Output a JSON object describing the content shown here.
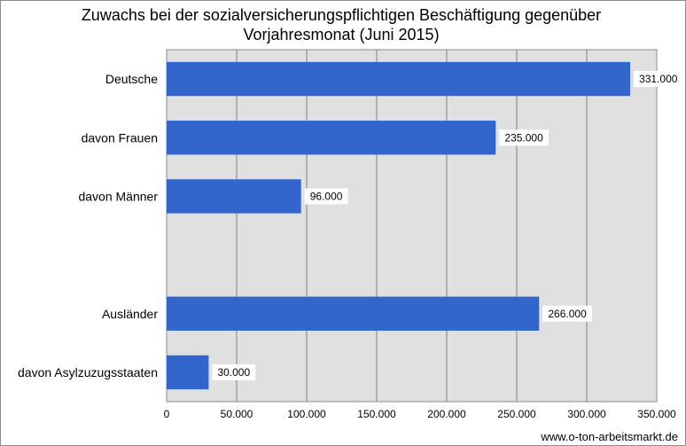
{
  "chart_data": {
    "type": "bar",
    "orientation": "horizontal",
    "title_lines": [
      "Zuwachs bei der sozialversicherungspflichtigen Beschäftigung gegenüber",
      "Vorjahresmonat (Juni 2015)"
    ],
    "categories": [
      "Deutsche",
      "davon Frauen",
      "davon Männer",
      "",
      "Ausländer",
      "davon Asylzuzugsstaaten"
    ],
    "values": [
      331000,
      235000,
      96000,
      null,
      266000,
      30000
    ],
    "data_labels": [
      "331.000",
      "235.000",
      "96.000",
      "",
      "266.000",
      "30.000"
    ],
    "xlim": [
      0,
      350000
    ],
    "x_ticks": [
      0,
      50000,
      100000,
      150000,
      200000,
      250000,
      300000,
      350000
    ],
    "x_tick_labels": [
      "0",
      "50.000",
      "100.000",
      "150.000",
      "200.000",
      "250.000",
      "300.000",
      "350.000"
    ],
    "grid": true,
    "legend": "none",
    "bar_color": "#3366cc",
    "plot_background": "#e0e0e0",
    "gridline_color": "#808080"
  },
  "source": "www.o-ton-arbeitsmarkt.de"
}
